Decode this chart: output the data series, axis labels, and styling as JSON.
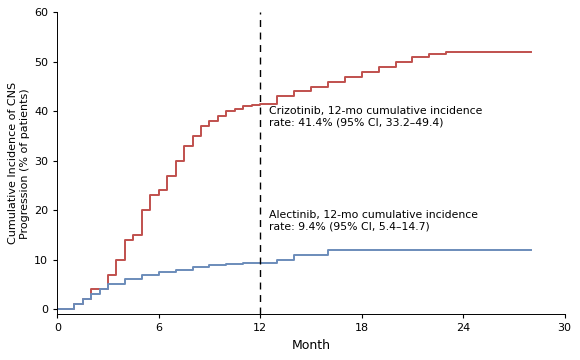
{
  "xlabel": "Month",
  "ylabel": "Cumulative Incidence of CNS\nProgression (% of patients)",
  "xlim": [
    0,
    30
  ],
  "ylim": [
    -1,
    60
  ],
  "xticks": [
    0,
    6,
    12,
    18,
    24,
    30
  ],
  "yticks": [
    0,
    10,
    20,
    30,
    40,
    50,
    60
  ],
  "dashed_x": 12,
  "crizotinib_color": "#c0504d",
  "alectinib_color": "#6b8cba",
  "background_color": "#ffffff",
  "crizotinib_label_line1": "Crizotinib, 12-mo cumulative incidence",
  "crizotinib_label_line2": "rate: 41.4% (95% CI, 33.2–49.4)",
  "alectinib_label_line1": "Alectinib, 12-mo cumulative incidence",
  "alectinib_label_line2": "rate: 9.4% (95% CI, 5.4–14.7)",
  "crizotinib_x": [
    0,
    1,
    1.5,
    2,
    3,
    3.5,
    4,
    4.5,
    5,
    5.5,
    6,
    6.5,
    7,
    7.5,
    8,
    8.5,
    9,
    9.5,
    10,
    10.5,
    11,
    11.5,
    12,
    13,
    14,
    15,
    16,
    17,
    18,
    19,
    20,
    21,
    22,
    23,
    24,
    25,
    26,
    28
  ],
  "crizotinib_y": [
    0,
    1,
    2,
    4,
    7,
    10,
    14,
    15,
    20,
    23,
    24,
    27,
    30,
    33,
    35,
    37,
    38,
    39,
    40,
    40.5,
    41,
    41.2,
    41.4,
    43,
    44,
    45,
    46,
    47,
    48,
    49,
    50,
    51,
    51.5,
    52,
    52,
    52,
    52,
    52
  ],
  "alectinib_x": [
    0,
    1,
    1.5,
    2,
    2.5,
    3,
    4,
    5,
    6,
    7,
    8,
    9,
    10,
    11,
    12,
    13,
    14,
    16,
    18,
    28
  ],
  "alectinib_y": [
    0,
    1,
    2,
    3,
    4,
    5,
    6,
    7,
    7.5,
    8,
    8.5,
    9,
    9.2,
    9.4,
    9.4,
    10,
    11,
    12,
    12,
    12
  ]
}
